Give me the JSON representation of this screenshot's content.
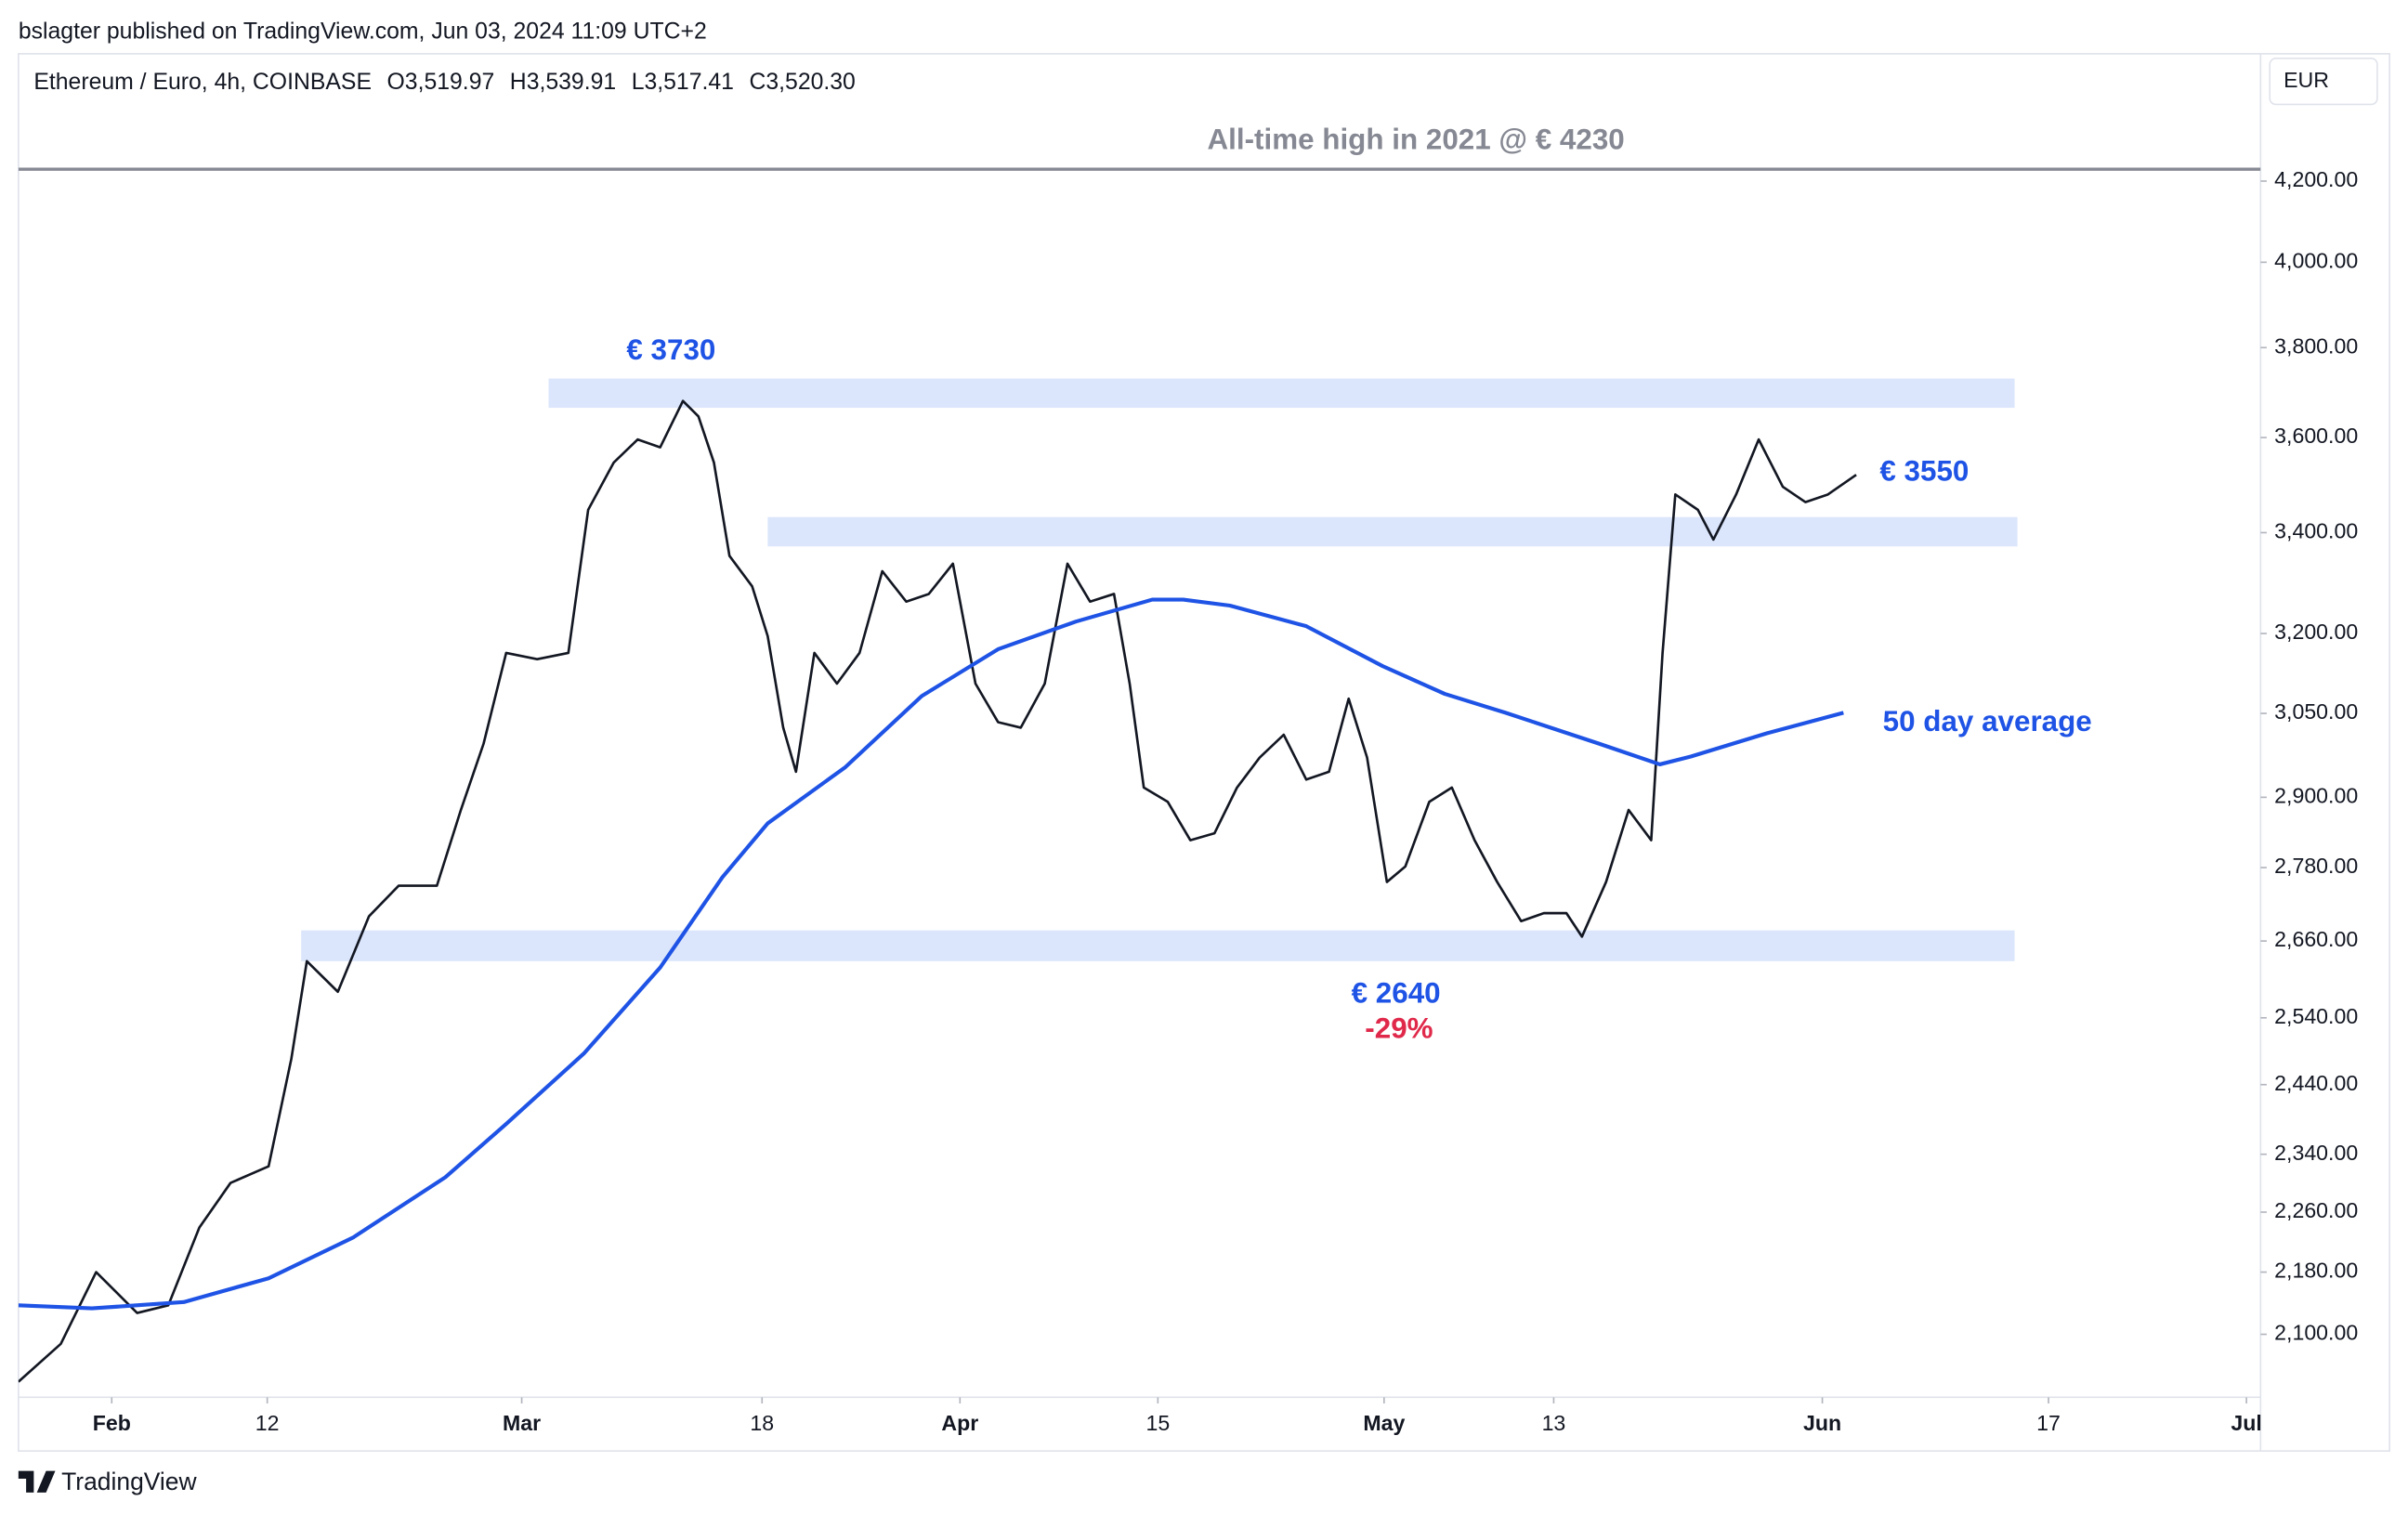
{
  "chart_data": {
    "type": "line",
    "header": "bslagter published on TradingView.com, Jun 03, 2024 11:09 UTC+2",
    "symbol": "Ethereum / Euro, 4h, COINBASE",
    "ohlc": [
      "O3,519.97",
      "H3,539.91",
      "L3,517.41",
      "C3,520.30"
    ],
    "currency": "EUR",
    "footer": "TradingView",
    "log_scale": true,
    "xlim": [
      25.4,
      184
    ],
    "ylim": [
      2022,
      4534
    ],
    "xticks": [
      {
        "value": 32,
        "label": "Feb"
      },
      {
        "value": 43,
        "label": "12"
      },
      {
        "value": 61,
        "label": "Mar"
      },
      {
        "value": 78,
        "label": "18"
      },
      {
        "value": 92,
        "label": "Apr"
      },
      {
        "value": 106,
        "label": "15"
      },
      {
        "value": 122,
        "label": "May"
      },
      {
        "value": 134,
        "label": "13"
      },
      {
        "value": 153,
        "label": "Jun"
      },
      {
        "value": 169,
        "label": "17"
      },
      {
        "value": 183,
        "label": "Jul"
      }
    ],
    "yticks": [
      {
        "value": 2100,
        "label": "2,100.00"
      },
      {
        "value": 2180,
        "label": "2,180.00"
      },
      {
        "value": 2260,
        "label": "2,260.00"
      },
      {
        "value": 2340,
        "label": "2,340.00"
      },
      {
        "value": 2440,
        "label": "2,440.00"
      },
      {
        "value": 2540,
        "label": "2,540.00"
      },
      {
        "value": 2660,
        "label": "2,660.00"
      },
      {
        "value": 2780,
        "label": "2,780.00"
      },
      {
        "value": 2900,
        "label": "2,900.00"
      },
      {
        "value": 3050,
        "label": "3,050.00"
      },
      {
        "value": 3200,
        "label": "3,200.00"
      },
      {
        "value": 3400,
        "label": "3,400.00"
      },
      {
        "value": 3600,
        "label": "3,600.00"
      },
      {
        "value": 3800,
        "label": "3,800.00"
      },
      {
        "value": 4000,
        "label": "4,000.00"
      },
      {
        "value": 4200,
        "label": "4,200.00"
      }
    ],
    "series": [
      {
        "name": "Ethereum / Euro",
        "color": "#131722",
        "x": [
          25.4,
          28.4,
          30.9,
          33.8,
          36,
          38.2,
          40.4,
          43.1,
          44.7,
          45.8,
          48,
          50.2,
          52.3,
          55,
          56.7,
          58.3,
          59.9,
          62.1,
          64.3,
          65.7,
          67.5,
          69.2,
          70.8,
          72.4,
          73.5,
          74.6,
          75.7,
          77.3,
          78.4,
          79.5,
          80.4,
          81.7,
          83.3,
          84.9,
          86.5,
          88.2,
          89.8,
          91.5,
          93.1,
          94.7,
          96.3,
          98,
          99.6,
          101.2,
          102.9,
          104,
          105,
          106.7,
          108.3,
          110,
          111.6,
          113.2,
          114.9,
          116.5,
          118.1,
          119.5,
          120.8,
          122.2,
          123.5,
          125.2,
          126.8,
          128.4,
          130,
          131.7,
          133.3,
          134.9,
          136,
          137.7,
          139.3,
          140.9,
          141.7,
          142.6,
          144.2,
          145.3,
          146.9,
          148.5,
          150.2,
          151.8,
          153.4,
          155.4
        ],
        "values": [
          2041,
          2088,
          2180,
          2127,
          2137,
          2239,
          2300,
          2323,
          2478,
          2628,
          2580,
          2700,
          2750,
          2750,
          2878,
          2995,
          3163,
          3151,
          3163,
          3447,
          3546,
          3596,
          3579,
          3680,
          3646,
          3546,
          3353,
          3292,
          3195,
          3024,
          2945,
          3163,
          3105,
          3163,
          3322,
          3262,
          3277,
          3337,
          3105,
          3034,
          3024,
          3105,
          3337,
          3262,
          3277,
          3105,
          2917,
          2892,
          2826,
          2838,
          2917,
          2970,
          3011,
          2931,
          2945,
          3077,
          2970,
          2756,
          2782,
          2892,
          2917,
          2826,
          2756,
          2692,
          2705,
          2705,
          2667,
          2756,
          2878,
          2826,
          3163,
          3479,
          3447,
          3386,
          3479,
          3596,
          3495,
          3463,
          3479,
          3520.3
        ]
      },
      {
        "name": "50 day average",
        "color": "#1e53e5",
        "x": [
          25.4,
          30.6,
          37.1,
          43.1,
          49.1,
          55.6,
          59.9,
          65.4,
          70.8,
          75.2,
          78.4,
          83.9,
          89.3,
          94.7,
          100.2,
          105.6,
          107.8,
          111.1,
          116.5,
          121.9,
          126.3,
          130.6,
          137.2,
          141.5,
          143.7,
          149.1,
          154.5
        ],
        "values": [
          2137,
          2133,
          2141,
          2172,
          2226,
          2308,
          2383,
          2486,
          2618,
          2764,
          2855,
          2953,
          3082,
          3170,
          3223,
          3266,
          3266,
          3254,
          3214,
          3138,
          3086,
          3051,
          2995,
          2958,
          2972,
          3014,
          3051
        ]
      }
    ],
    "zones": [
      {
        "low": 3665,
        "high": 3730,
        "from": 62.9,
        "to": 166.6,
        "color": "#dbe6fc"
      },
      {
        "low": 3372,
        "high": 3432,
        "from": 78.4,
        "to": 166.8,
        "color": "#dbe6fc"
      },
      {
        "low": 2628,
        "high": 2677,
        "from": 45.4,
        "to": 166.6,
        "color": "#dbe6fc"
      }
    ],
    "ath": {
      "value": 4230,
      "label": "All-time high in 2021 @ € 4230",
      "color": "#868993"
    },
    "annotations": [
      {
        "text": "€ 3730",
        "color": "#1e53e5"
      },
      {
        "text": "€ 3550",
        "color": "#1e53e5"
      },
      {
        "text": "50 day average",
        "color": "#1e53e5"
      },
      {
        "text": "€ 2640",
        "color": "#1e53e5"
      },
      {
        "text": "-29%",
        "color": "#e0294a"
      }
    ]
  }
}
